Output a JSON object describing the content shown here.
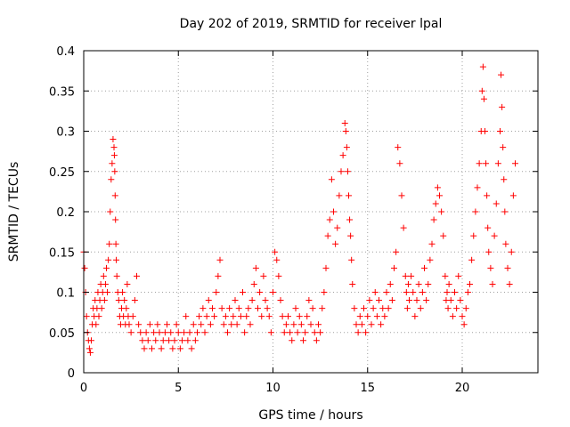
{
  "chart_data": {
    "type": "scatter",
    "title": "Day 202 of 2019, SRMTID for receiver lpal",
    "xlabel": "GPS time / hours",
    "ylabel": "SRMTID / TECUs",
    "xlim": [
      0,
      24
    ],
    "ylim": [
      0,
      0.4
    ],
    "xticks": [
      0,
      5,
      10,
      15,
      20
    ],
    "xtick_labels": [
      "0",
      "5",
      "10",
      "15",
      "20"
    ],
    "yticks": [
      0,
      0.05,
      0.1,
      0.15,
      0.2,
      0.25,
      0.3,
      0.35,
      0.4
    ],
    "ytick_labels": [
      "0",
      "0.05",
      "0.1",
      "0.15",
      "0.2",
      "0.25",
      "0.3",
      "0.35",
      "0.4"
    ],
    "grid": true,
    "marker": "+",
    "color": "#ff0000",
    "series": [
      {
        "name": "SRMTID",
        "x": [
          0.0,
          0.05,
          0.1,
          0.15,
          0.2,
          0.25,
          0.3,
          0.35,
          0.4,
          0.45,
          0.5,
          0.55,
          0.6,
          0.65,
          0.7,
          0.75,
          0.8,
          0.85,
          0.9,
          0.95,
          1.0,
          1.05,
          1.1,
          1.15,
          1.2,
          1.25,
          1.3,
          1.35,
          1.4,
          1.45,
          1.5,
          1.55,
          1.6,
          1.62,
          1.64,
          1.66,
          1.68,
          1.7,
          1.72,
          1.75,
          1.8,
          1.85,
          1.9,
          1.95,
          2.0,
          2.05,
          2.1,
          2.15,
          2.2,
          2.25,
          2.3,
          2.35,
          2.4,
          2.5,
          2.6,
          2.7,
          2.8,
          2.9,
          3.0,
          3.1,
          3.2,
          3.3,
          3.4,
          3.5,
          3.6,
          3.7,
          3.8,
          3.9,
          4.0,
          4.1,
          4.2,
          4.3,
          4.4,
          4.5,
          4.6,
          4.7,
          4.8,
          4.9,
          5.0,
          5.1,
          5.2,
          5.3,
          5.4,
          5.5,
          5.6,
          5.7,
          5.8,
          5.9,
          6.0,
          6.1,
          6.2,
          6.3,
          6.4,
          6.5,
          6.6,
          6.7,
          6.8,
          6.9,
          7.0,
          7.1,
          7.2,
          7.3,
          7.4,
          7.5,
          7.6,
          7.7,
          7.8,
          7.9,
          8.0,
          8.1,
          8.2,
          8.3,
          8.4,
          8.5,
          8.6,
          8.7,
          8.8,
          8.9,
          9.0,
          9.1,
          9.2,
          9.3,
          9.4,
          9.5,
          9.6,
          9.7,
          9.8,
          9.9,
          10.0,
          10.1,
          10.2,
          10.3,
          10.4,
          10.5,
          10.6,
          10.7,
          10.8,
          10.9,
          11.0,
          11.1,
          11.2,
          11.3,
          11.4,
          11.5,
          11.6,
          11.7,
          11.8,
          11.9,
          12.0,
          12.1,
          12.2,
          12.3,
          12.4,
          12.5,
          12.6,
          12.7,
          12.8,
          12.9,
          13.0,
          13.1,
          13.2,
          13.3,
          13.4,
          13.5,
          13.6,
          13.7,
          13.8,
          13.85,
          13.9,
          13.95,
          14.0,
          14.05,
          14.1,
          14.15,
          14.2,
          14.3,
          14.4,
          14.5,
          14.6,
          14.7,
          14.8,
          14.9,
          15.0,
          15.1,
          15.2,
          15.3,
          15.4,
          15.5,
          15.6,
          15.7,
          15.8,
          15.9,
          16.0,
          16.1,
          16.2,
          16.3,
          16.4,
          16.5,
          16.6,
          16.7,
          16.8,
          16.9,
          17.0,
          17.05,
          17.1,
          17.15,
          17.2,
          17.3,
          17.4,
          17.5,
          17.6,
          17.7,
          17.8,
          17.9,
          18.0,
          18.1,
          18.2,
          18.3,
          18.4,
          18.5,
          18.6,
          18.7,
          18.8,
          18.9,
          19.0,
          19.1,
          19.15,
          19.2,
          19.25,
          19.3,
          19.4,
          19.5,
          19.6,
          19.7,
          19.8,
          19.9,
          20.0,
          20.1,
          20.2,
          20.3,
          20.4,
          20.5,
          20.6,
          20.7,
          20.8,
          20.9,
          21.0,
          21.05,
          21.1,
          21.15,
          21.2,
          21.25,
          21.3,
          21.35,
          21.4,
          21.5,
          21.6,
          21.7,
          21.8,
          21.9,
          22.0,
          22.05,
          22.1,
          22.15,
          22.2,
          22.25,
          22.3,
          22.4,
          22.5,
          22.6,
          22.7,
          22.8
        ],
        "y": [
          0.15,
          0.13,
          0.1,
          0.07,
          0.05,
          0.04,
          0.03,
          0.025,
          0.04,
          0.06,
          0.08,
          0.07,
          0.09,
          0.06,
          0.08,
          0.1,
          0.07,
          0.09,
          0.11,
          0.08,
          0.1,
          0.12,
          0.09,
          0.11,
          0.13,
          0.1,
          0.14,
          0.16,
          0.2,
          0.24,
          0.26,
          0.29,
          0.28,
          0.27,
          0.25,
          0.22,
          0.19,
          0.16,
          0.14,
          0.12,
          0.1,
          0.09,
          0.07,
          0.06,
          0.08,
          0.1,
          0.07,
          0.09,
          0.06,
          0.08,
          0.11,
          0.07,
          0.06,
          0.05,
          0.07,
          0.09,
          0.12,
          0.06,
          0.05,
          0.04,
          0.03,
          0.05,
          0.04,
          0.06,
          0.03,
          0.05,
          0.04,
          0.06,
          0.05,
          0.03,
          0.04,
          0.05,
          0.06,
          0.04,
          0.05,
          0.03,
          0.04,
          0.06,
          0.05,
          0.03,
          0.04,
          0.05,
          0.07,
          0.04,
          0.05,
          0.03,
          0.06,
          0.04,
          0.05,
          0.07,
          0.06,
          0.08,
          0.05,
          0.07,
          0.09,
          0.06,
          0.08,
          0.07,
          0.1,
          0.12,
          0.14,
          0.08,
          0.06,
          0.07,
          0.05,
          0.08,
          0.06,
          0.07,
          0.09,
          0.06,
          0.08,
          0.07,
          0.1,
          0.05,
          0.07,
          0.08,
          0.06,
          0.09,
          0.11,
          0.13,
          0.08,
          0.1,
          0.07,
          0.12,
          0.09,
          0.08,
          0.07,
          0.05,
          0.1,
          0.15,
          0.14,
          0.12,
          0.09,
          0.07,
          0.05,
          0.06,
          0.07,
          0.05,
          0.04,
          0.06,
          0.08,
          0.05,
          0.07,
          0.06,
          0.04,
          0.05,
          0.07,
          0.09,
          0.06,
          0.08,
          0.05,
          0.04,
          0.06,
          0.05,
          0.08,
          0.1,
          0.13,
          0.17,
          0.19,
          0.24,
          0.2,
          0.16,
          0.18,
          0.22,
          0.25,
          0.27,
          0.31,
          0.3,
          0.28,
          0.25,
          0.22,
          0.19,
          0.17,
          0.14,
          0.11,
          0.08,
          0.06,
          0.05,
          0.07,
          0.06,
          0.08,
          0.05,
          0.07,
          0.09,
          0.06,
          0.08,
          0.1,
          0.07,
          0.09,
          0.06,
          0.08,
          0.07,
          0.1,
          0.08,
          0.11,
          0.09,
          0.13,
          0.15,
          0.28,
          0.26,
          0.22,
          0.18,
          0.12,
          0.1,
          0.08,
          0.11,
          0.09,
          0.12,
          0.1,
          0.07,
          0.09,
          0.11,
          0.08,
          0.1,
          0.13,
          0.09,
          0.11,
          0.14,
          0.16,
          0.19,
          0.21,
          0.23,
          0.22,
          0.2,
          0.17,
          0.12,
          0.09,
          0.1,
          0.08,
          0.11,
          0.09,
          0.07,
          0.1,
          0.08,
          0.12,
          0.09,
          0.07,
          0.06,
          0.08,
          0.1,
          0.11,
          0.14,
          0.17,
          0.2,
          0.23,
          0.26,
          0.3,
          0.35,
          0.38,
          0.34,
          0.3,
          0.26,
          0.22,
          0.18,
          0.15,
          0.13,
          0.11,
          0.17,
          0.21,
          0.26,
          0.3,
          0.37,
          0.33,
          0.28,
          0.24,
          0.2,
          0.16,
          0.13,
          0.11,
          0.15,
          0.22,
          0.26
        ]
      }
    ]
  }
}
